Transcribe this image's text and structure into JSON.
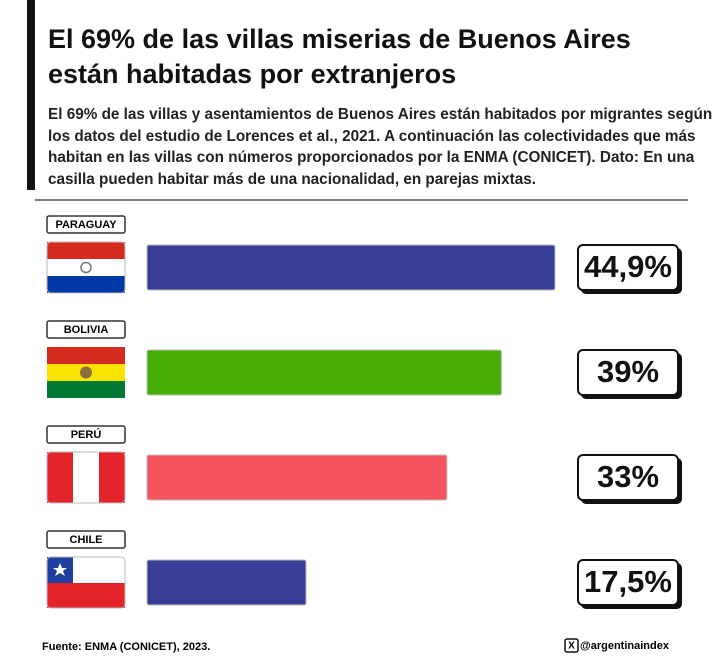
{
  "chart_data": {
    "type": "bar",
    "orientation": "horizontal",
    "title": "El 69% de las villas miserias de Buenos Aires están habitadas por extranjeros",
    "subtitle": "El 69% de las villas y asentamientos de Buenos Aires están habitados por migrantes según los datos del estudio de Lorences et al., 2021. A continuación las colectividades que más habitan en las villas con números proporcionados por la ENMA (CONICET). Dato: En una casilla pueden habitar más de una nacionalidad, en parejas mixtas.",
    "categories": [
      "PARAGUAY",
      "BOLIVIA",
      "PERÚ",
      "CHILE"
    ],
    "values": [
      44.9,
      39,
      33,
      17.5
    ],
    "value_labels": [
      "44,9%",
      "39%",
      "33%",
      "17,5%"
    ],
    "colors": [
      "#383d98",
      "#48ad02",
      "#f7535c",
      "#383d98"
    ],
    "source": "Fuente: ENMA (CONICET), 2023.",
    "handle": "@argentinaindex"
  }
}
